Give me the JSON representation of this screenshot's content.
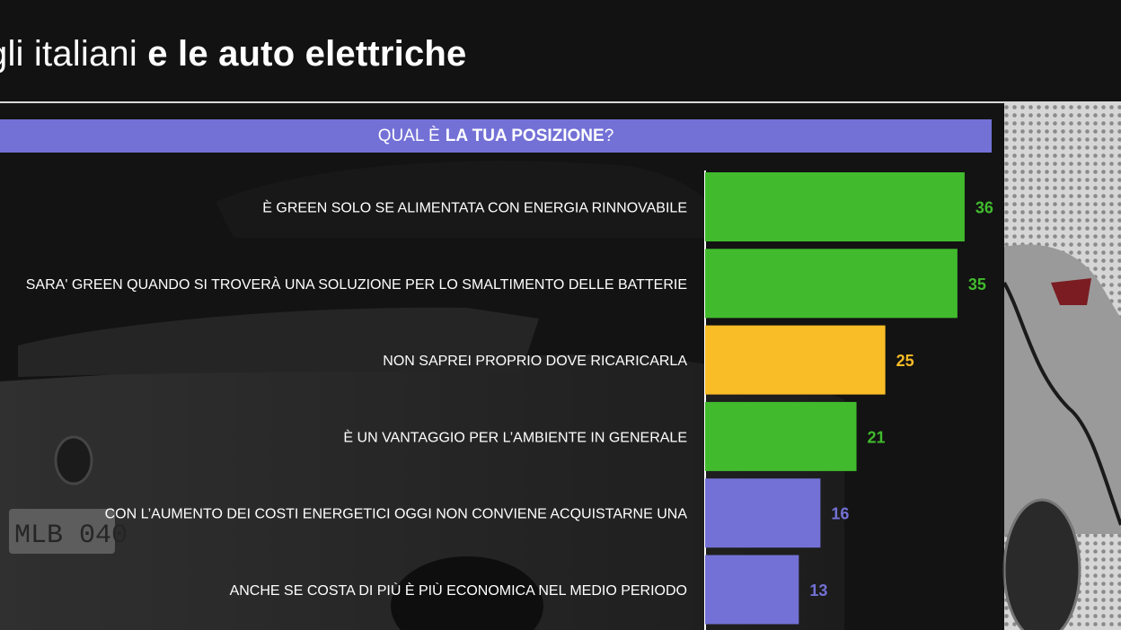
{
  "header": {
    "title_light": "gli italiani",
    "title_bold": "e le auto elettriche"
  },
  "question": {
    "prefix": "QUAL È",
    "emphasis": "LA TUA POSIZIONE",
    "suffix": "?"
  },
  "colors": {
    "green": "#41bb2d",
    "yellow": "#f8bd27",
    "purple": "#7371d6",
    "background": "#141414"
  },
  "chart_data": {
    "type": "bar",
    "orientation": "horizontal",
    "categories": [
      "È GREEN SOLO SE ALIMENTATA CON ENERGIA RINNOVABILE",
      "SARA' GREEN QUANDO SI TROVERÀ UNA SOLUZIONE PER LO SMALTIMENTO DELLE BATTERIE",
      "NON SAPREI PROPRIO DOVE RICARICARLA",
      "È UN VANTAGGIO PER L’AMBIENTE IN GENERALE",
      "CON L’AUMENTO DEI COSTI ENERGETICI OGGI NON CONVIENE ACQUISTARNE UNA",
      "ANCHE SE COSTA DI PIÙ È PIÙ ECONOMICA NEL MEDIO PERIODO"
    ],
    "values": [
      36,
      35,
      25,
      21,
      16,
      13
    ],
    "bar_colors": [
      "#41bb2d",
      "#41bb2d",
      "#f8bd27",
      "#41bb2d",
      "#7371d6",
      "#7371d6"
    ],
    "xlim": [
      0,
      40
    ],
    "grid": false,
    "legend": "none"
  }
}
